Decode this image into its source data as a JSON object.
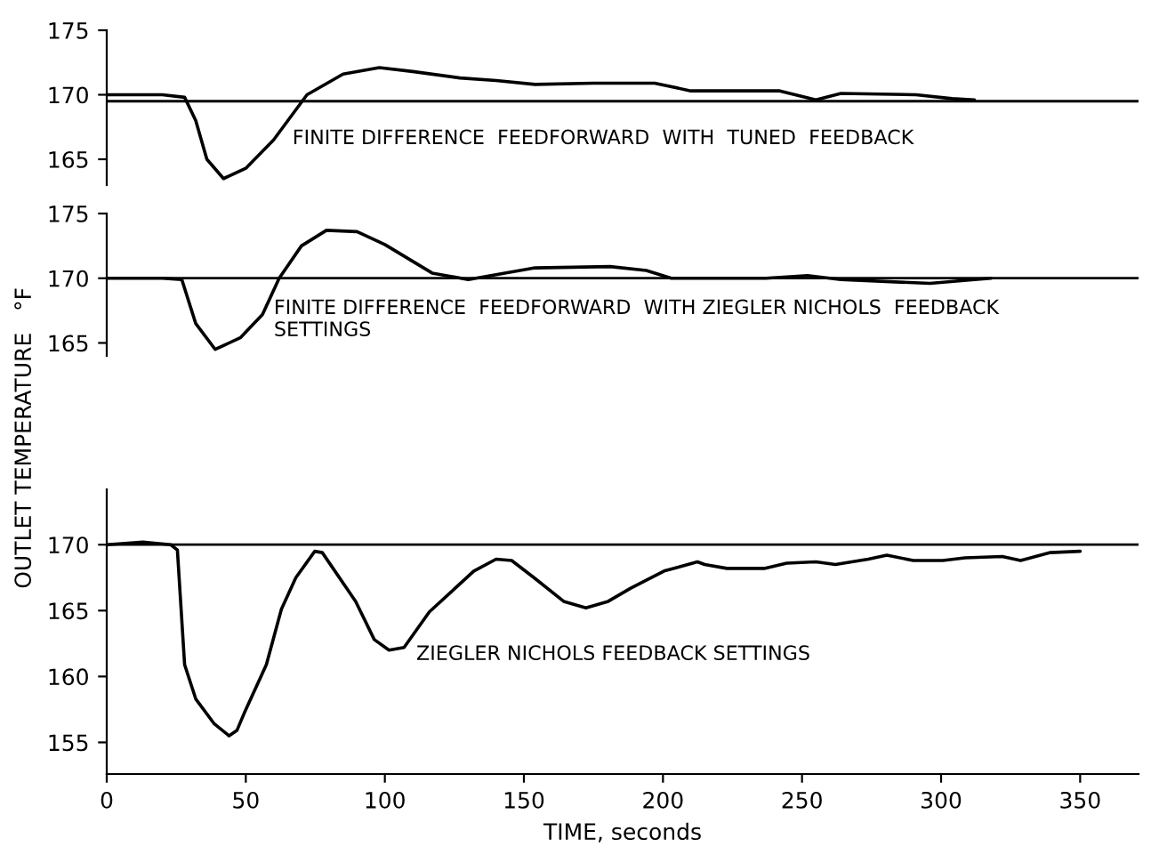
{
  "chart_data": [
    {
      "type": "line",
      "xlim": [
        0,
        371
      ],
      "ylim": [
        163,
        175
      ],
      "yticks": [
        165,
        170,
        175
      ],
      "tick_labels": "y",
      "grid": false,
      "annotations": [
        "FINITE DIFFERENCE  FEEDFORWARD  WITH  TUNED  FEEDBACK"
      ],
      "ref_lines": [
        {
          "axis": "y",
          "value": 169.5,
          "color": "#000000"
        }
      ],
      "series": [
        {
          "color": "#000000",
          "x": [
            0,
            20,
            28,
            32,
            36,
            42,
            50,
            60,
            72,
            85,
            98,
            110,
            127,
            140,
            154,
            175,
            197,
            210,
            242,
            255,
            264,
            291,
            304,
            312
          ],
          "values": [
            170,
            170,
            169.8,
            168,
            165,
            163.5,
            164.3,
            166.5,
            170,
            171.6,
            172.1,
            171.8,
            171.3,
            171.1,
            170.8,
            170.9,
            170.9,
            170.3,
            170.3,
            169.6,
            170.1,
            170.0,
            169.7,
            169.6
          ]
        }
      ]
    },
    {
      "type": "line",
      "xlim": [
        0,
        371
      ],
      "ylim": [
        164,
        175
      ],
      "yticks": [
        165,
        170,
        175
      ],
      "tick_labels": "y",
      "grid": false,
      "annotations": [
        "FINITE DIFFERENCE  FEEDFORWARD  WITH ZIEGLER NICHOLS  FEEDBACK\nSETTINGS"
      ],
      "ref_lines": [
        {
          "axis": "y",
          "value": 170,
          "color": "#000000"
        }
      ],
      "series": [
        {
          "color": "#000000",
          "x": [
            0,
            20,
            27,
            32,
            39,
            48,
            56,
            62,
            70,
            79,
            90,
            100,
            117,
            130,
            154,
            181,
            194,
            203,
            237,
            252,
            264,
            296,
            312,
            318
          ],
          "values": [
            170,
            170,
            169.9,
            166.5,
            164.5,
            165.4,
            167.2,
            170,
            172.5,
            173.7,
            173.6,
            172.6,
            170.4,
            169.9,
            170.8,
            170.9,
            170.6,
            170,
            170,
            170.2,
            169.9,
            169.6,
            169.9,
            170
          ]
        }
      ]
    },
    {
      "type": "line",
      "xlim": [
        0,
        371
      ],
      "ylim": [
        152.6,
        174.2
      ],
      "xticks": [
        0,
        50,
        100,
        150,
        200,
        250,
        300,
        350
      ],
      "yticks": [
        155,
        160,
        165,
        170
      ],
      "grid": false,
      "xlabel": "TIME, seconds",
      "ylabel": "OUTLET TEMPERATURE   °F",
      "annotations": [
        "ZIEGLER NICHOLS FEEDBACK SETTINGS"
      ],
      "ref_lines": [
        {
          "axis": "y",
          "value": 170,
          "color": "#000000"
        }
      ],
      "series": [
        {
          "color": "#000000",
          "x": [
            0,
            13,
            23,
            25.4,
            28,
            32,
            38.7,
            44,
            46.8,
            49.4,
            57.4,
            62.8,
            68,
            74.8,
            77.5,
            89.5,
            96.2,
            101.5,
            106.9,
            116,
            132,
            140,
            145.6,
            153.6,
            164.3,
            172.3,
            180.3,
            188.4,
            200.4,
            212.4,
            215,
            223,
            236.4,
            244.5,
            255,
            262,
            273.8,
            280.5,
            290,
            300.6,
            308.6,
            322,
            328.6,
            339.3,
            350
          ],
          "values": [
            170,
            170.2,
            170,
            169.6,
            160.9,
            158.3,
            156.4,
            155.5,
            155.9,
            157.2,
            160.9,
            165.1,
            167.5,
            169.5,
            169.4,
            165.7,
            162.8,
            162,
            162.2,
            164.9,
            168,
            168.9,
            168.8,
            167.5,
            165.7,
            165.2,
            165.7,
            166.7,
            168,
            168.7,
            168.5,
            168.2,
            168.2,
            168.6,
            168.7,
            168.5,
            168.9,
            169.2,
            168.8,
            168.8,
            169,
            169.1,
            168.8,
            169.4,
            169.5
          ]
        }
      ]
    }
  ]
}
